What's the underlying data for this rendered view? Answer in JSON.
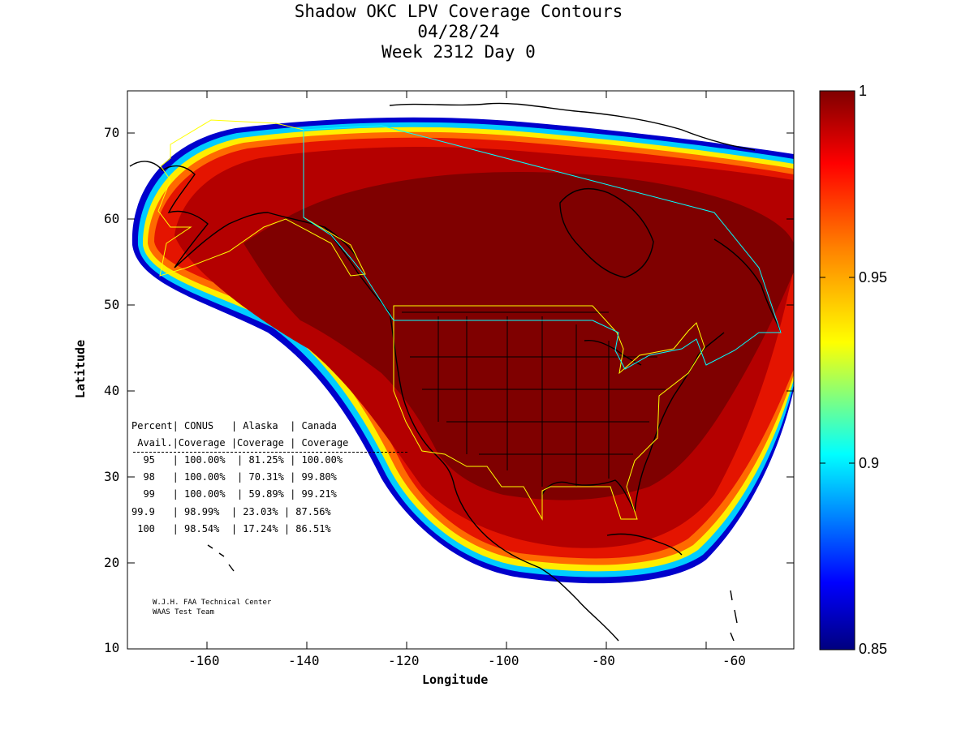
{
  "title": {
    "line1": "Shadow OKC LPV Coverage Contours",
    "line2": "04/28/24",
    "line3": "Week 2312 Day 0"
  },
  "axes": {
    "xlabel": "Longitude",
    "ylabel": "Latitude",
    "xticks": [
      "-160",
      "-140",
      "-120",
      "-100",
      "-80",
      "-60"
    ],
    "yticks": [
      "10",
      "20",
      "30",
      "40",
      "50",
      "60",
      "70"
    ],
    "xlim": [
      -174,
      -50
    ],
    "ylim": [
      10,
      75
    ]
  },
  "colorbar": {
    "ticks": [
      "0.85",
      "0.9",
      "0.95",
      "1"
    ],
    "range": [
      0.85,
      1.0
    ],
    "colormap": "jet"
  },
  "stats_table": {
    "header1": "Percent| CONUS   | Alaska  | Canada",
    "header2": " Avail.|Coverage |Coverage | Coverage",
    "rows": [
      "  95   | 100.00%  | 81.25% | 100.00%",
      "  98   | 100.00%  | 70.31% | 99.80%",
      "  99   | 100.00%  | 59.89% | 99.21%",
      "99.9   | 98.99%  | 23.03% | 87.56%",
      " 100   | 98.54%  | 17.24% | 86.51%"
    ]
  },
  "credit": {
    "line1": "W.J.H. FAA Technical Center",
    "line2": "WAAS Test Team"
  },
  "colors": {
    "coverage_max": "#7f0000",
    "coverage_high": "#b40000",
    "coverage_red": "#e11500",
    "boundary_conus": "#ffff00",
    "boundary_canada": "#00ffff",
    "coastline": "#000000"
  }
}
